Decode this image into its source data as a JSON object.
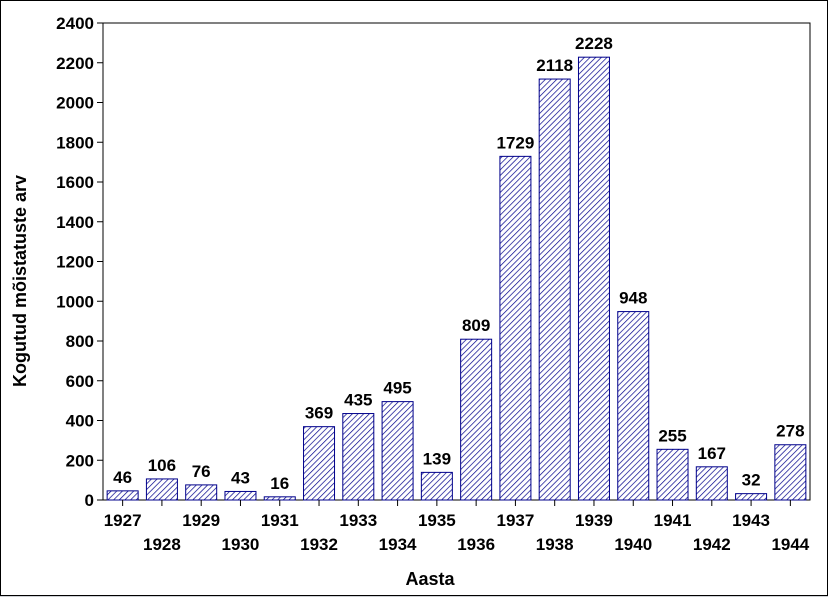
{
  "chart_data": {
    "type": "bar",
    "xlabel": "Aasta",
    "ylabel": "Kogutud mõistatuste arv",
    "ylim": [
      0,
      2400
    ],
    "yticks": [
      0,
      200,
      400,
      600,
      800,
      1000,
      1200,
      1400,
      1600,
      1800,
      2000,
      2200,
      2400
    ],
    "categories": [
      "1927",
      "1928",
      "1929",
      "1930",
      "1931",
      "1932",
      "1933",
      "1934",
      "1935",
      "1936",
      "1937",
      "1938",
      "1939",
      "1940",
      "1941",
      "1942",
      "1943",
      "1944"
    ],
    "values": [
      46,
      106,
      76,
      43,
      16,
      369,
      435,
      495,
      139,
      809,
      1729,
      2118,
      2228,
      948,
      255,
      167,
      32,
      278
    ],
    "data_labels": [
      "46",
      "106",
      "76",
      "43",
      "16",
      "369",
      "435",
      "495",
      "139",
      "809",
      "1729",
      "2118",
      "2228",
      "948",
      "255",
      "167",
      "32",
      "278"
    ],
    "grid": false,
    "legend": "none",
    "colors": {
      "bar_stroke": "#00008b",
      "hatch": "#00008b",
      "background": "#ffffff"
    }
  }
}
